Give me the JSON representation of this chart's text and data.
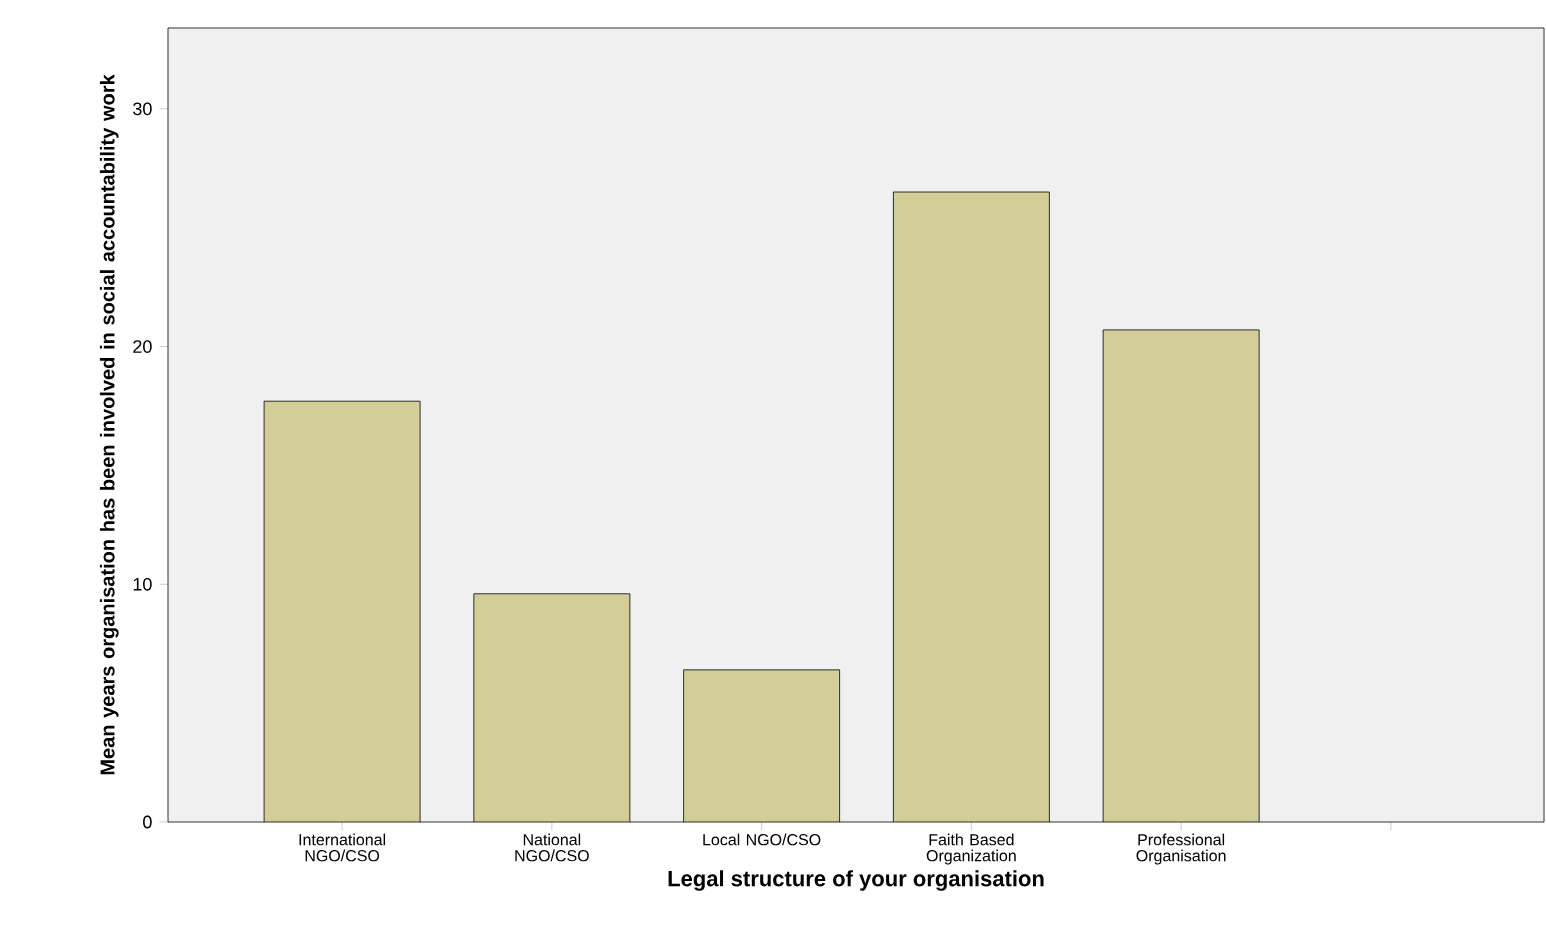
{
  "chart_data": {
    "type": "bar",
    "xlabel": "Legal structure of your organisation",
    "ylabel": "Mean years organisation has been involved in social accountability work",
    "categories": [
      "International NGO/CSO",
      "National NGO/CSO",
      "Local NGO/CSO",
      "Faith Based Organization",
      "Professional Organisation",
      null
    ],
    "values": [
      17.7,
      9.6,
      6.4,
      26.5,
      20.7,
      null
    ],
    "color": "#d3ce97",
    "ylim": [
      0,
      33.4
    ],
    "yticks": [
      0,
      10,
      20,
      30
    ],
    "grid": false
  }
}
